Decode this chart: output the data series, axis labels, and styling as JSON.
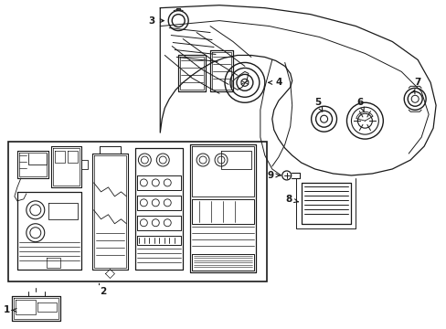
{
  "background_color": "#ffffff",
  "line_color": "#1a1a1a",
  "line_width": 0.8,
  "fig_width": 4.89,
  "fig_height": 3.6,
  "dpi": 100
}
